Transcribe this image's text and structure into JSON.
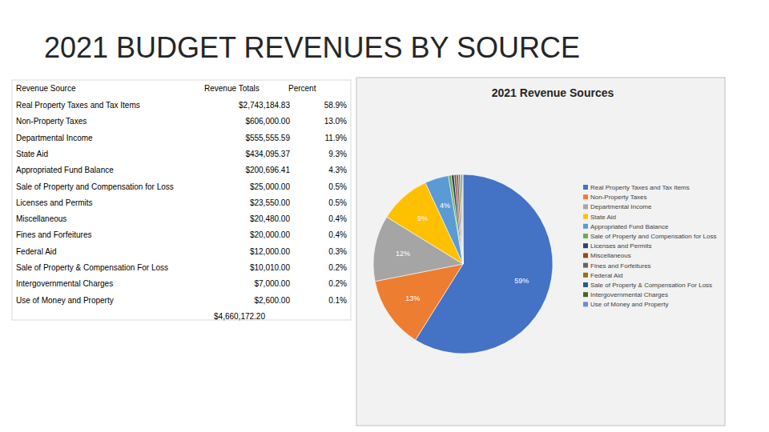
{
  "title": "2021 BUDGET REVENUES BY SOURCE",
  "table": {
    "columns": [
      "Revenue Source",
      "Revenue Totals",
      "Percent"
    ],
    "rows": [
      [
        "Real Property Taxes and Tax Items",
        "$2,743,184.83",
        "58.9%"
      ],
      [
        "Non-Property Taxes",
        "$606,000.00",
        "13.0%"
      ],
      [
        "Departmental Income",
        "$555,555.59",
        "11.9%"
      ],
      [
        "State Aid",
        "$434,095.37",
        "9.3%"
      ],
      [
        "Appropriated Fund Balance",
        "$200,696.41",
        "4.3%"
      ],
      [
        "Sale of Property and Compensation for Loss",
        "$25,000.00",
        "0.5%"
      ],
      [
        "Licenses and Permits",
        "$23,550.00",
        "0.5%"
      ],
      [
        "Miscellaneous",
        "$20,480.00",
        "0.4%"
      ],
      [
        "Fines and Forfeitures",
        "$20,000.00",
        "0.4%"
      ],
      [
        "Federal Aid",
        "$12,000.00",
        "0.3%"
      ],
      [
        "Sale of Property & Compensation For Loss",
        "$10,010.00",
        "0.2%"
      ],
      [
        "Intergovernmental Charges",
        "$7,000.00",
        "0.2%"
      ],
      [
        "Use of Money and Property",
        "$2,600.00",
        "0.1%"
      ]
    ],
    "total": "$4,660,172.20"
  },
  "chart_data": {
    "type": "pie",
    "title": "2021 Revenue Sources",
    "categories": [
      "Real Property Taxes and Tax Items",
      "Non-Property Taxes",
      "Departmental Income",
      "State Aid",
      "Appropriated Fund Balance",
      "Sale of Property and Compensation for Loss",
      "Licenses and Permits",
      "Miscellaneous",
      "Fines and Forfeitures",
      "Federal Aid",
      "Sale of Property & Compensation For Loss",
      "Intergovernmental Charges",
      "Use of Money and Property"
    ],
    "values": [
      58.9,
      13.0,
      11.9,
      9.3,
      4.3,
      0.5,
      0.5,
      0.4,
      0.4,
      0.3,
      0.2,
      0.2,
      0.1
    ],
    "value_labels": [
      "59%",
      "13%",
      "12%",
      "9%",
      "4%",
      null,
      null,
      null,
      null,
      null,
      null,
      null,
      null
    ],
    "colors": [
      "#4472c4",
      "#ed7d31",
      "#a5a5a5",
      "#ffc000",
      "#5b9bd5",
      "#70ad47",
      "#264478",
      "#9e480e",
      "#636363",
      "#997300",
      "#255e91",
      "#43682b",
      "#698ed0"
    ],
    "data_labels": true,
    "legend": "right"
  }
}
